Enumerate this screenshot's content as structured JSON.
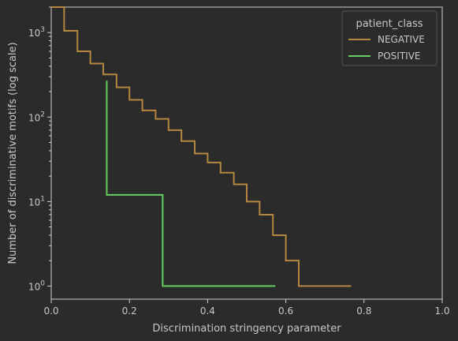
{
  "chart_data": {
    "type": "line",
    "title": "",
    "xlabel": "Discrimination stringency parameter",
    "ylabel": "Number of discriminative motifs (log scale)",
    "xlim": [
      0.0,
      1.0
    ],
    "ylim": [
      0.7,
      2000
    ],
    "y_scale": "log",
    "grid": false,
    "legend_position": "top-right",
    "legend_title": "patient_class",
    "x_ticks": [
      "0.0",
      "0.2",
      "0.4",
      "0.6",
      "0.8",
      "1.0"
    ],
    "y_ticks": [
      {
        "value": 1,
        "base": "10",
        "exp": "0"
      },
      {
        "value": 10,
        "base": "10",
        "exp": "1"
      },
      {
        "value": 100,
        "base": "10",
        "exp": "2"
      },
      {
        "value": 1000,
        "base": "10",
        "exp": "3"
      }
    ],
    "series": [
      {
        "name": "NEGATIVE",
        "color": "#b5873f",
        "step": "post",
        "x": [
          0.0,
          0.033,
          0.067,
          0.1,
          0.133,
          0.167,
          0.2,
          0.233,
          0.267,
          0.3,
          0.333,
          0.367,
          0.4,
          0.433,
          0.467,
          0.5,
          0.533,
          0.567,
          0.6,
          0.633,
          0.767
        ],
        "y": [
          2000,
          1050,
          600,
          430,
          320,
          225,
          160,
          120,
          95,
          70,
          52,
          37,
          29,
          22,
          16,
          10,
          7,
          4,
          2,
          1,
          1
        ]
      },
      {
        "name": "POSITIVE",
        "color": "#63cf63",
        "step": "post",
        "x": [
          0.142,
          0.142,
          0.285,
          0.573
        ],
        "y": [
          270,
          12,
          1,
          1
        ]
      }
    ]
  }
}
